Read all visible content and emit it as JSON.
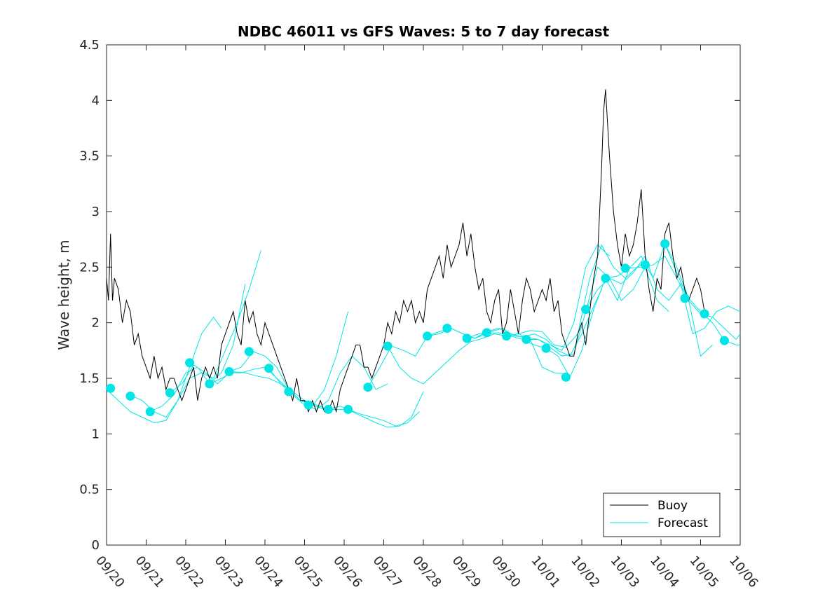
{
  "chart_data": {
    "type": "line",
    "title": "NDBC 46011 vs GFS Waves: 5 to 7 day forecast",
    "xlabel": "",
    "ylabel": "Wave height, m",
    "ylim": [
      0,
      4.5
    ],
    "yticks": [
      0,
      0.5,
      1,
      1.5,
      2,
      2.5,
      3,
      3.5,
      4,
      4.5
    ],
    "ytick_labels": [
      "0",
      "0.5",
      "1",
      "1.5",
      "2",
      "2.5",
      "3",
      "3.5",
      "4",
      "4.5"
    ],
    "xlim": [
      0,
      16
    ],
    "xticks": [
      0,
      1,
      2,
      3,
      4,
      5,
      6,
      7,
      8,
      9,
      10,
      11,
      12,
      13,
      14,
      15,
      16
    ],
    "xtick_labels": [
      "09/20",
      "09/21",
      "09/22",
      "09/23",
      "09/24",
      "09/25",
      "09/26",
      "09/27",
      "09/28",
      "09/29",
      "09/30",
      "10/01",
      "10/02",
      "10/03",
      "10/04",
      "10/05",
      "10/06"
    ],
    "legend": {
      "position": "bottom-right",
      "entries": [
        "Buoy",
        "Forecast"
      ]
    },
    "colors": {
      "buoy": "#000000",
      "forecast": "#00e5e5",
      "axis": "#262626"
    },
    "series": [
      {
        "name": "Buoy",
        "x": [
          0,
          0.05,
          0.1,
          0.15,
          0.2,
          0.3,
          0.4,
          0.5,
          0.6,
          0.7,
          0.8,
          0.9,
          1.0,
          1.1,
          1.2,
          1.3,
          1.4,
          1.5,
          1.6,
          1.7,
          1.8,
          1.9,
          2.0,
          2.1,
          2.2,
          2.3,
          2.4,
          2.5,
          2.6,
          2.7,
          2.8,
          2.9,
          3.0,
          3.1,
          3.2,
          3.3,
          3.4,
          3.5,
          3.6,
          3.7,
          3.8,
          3.9,
          4.0,
          4.1,
          4.2,
          4.3,
          4.4,
          4.5,
          4.6,
          4.7,
          4.8,
          4.9,
          5.0,
          5.1,
          5.2,
          5.3,
          5.4,
          5.5,
          5.6,
          5.7,
          5.8,
          5.9,
          6.0,
          6.1,
          6.2,
          6.3,
          6.4,
          6.5,
          6.6,
          6.7,
          6.8,
          6.9,
          7.0,
          7.1,
          7.2,
          7.3,
          7.4,
          7.5,
          7.6,
          7.7,
          7.8,
          7.9,
          8.0,
          8.1,
          8.2,
          8.3,
          8.4,
          8.5,
          8.6,
          8.7,
          8.8,
          8.9,
          9.0,
          9.1,
          9.2,
          9.3,
          9.4,
          9.5,
          9.6,
          9.7,
          9.8,
          9.9,
          10.0,
          10.1,
          10.2,
          10.3,
          10.4,
          10.5,
          10.6,
          10.7,
          10.8,
          10.9,
          11.0,
          11.1,
          11.2,
          11.3,
          11.4,
          11.5,
          11.6,
          11.7,
          11.8,
          11.9,
          12.0,
          12.1,
          12.2,
          12.3,
          12.4,
          12.5,
          12.55,
          12.6,
          12.7,
          12.8,
          12.9,
          13.0,
          13.1,
          13.2,
          13.3,
          13.4,
          13.5,
          13.6,
          13.7,
          13.8,
          13.9,
          14.0,
          14.1,
          14.2,
          14.3,
          14.4,
          14.5,
          14.6,
          14.7,
          14.8,
          14.9,
          15.0,
          15.1
        ],
        "values": [
          2.4,
          2.2,
          2.8,
          2.2,
          2.4,
          2.3,
          2.0,
          2.2,
          2.1,
          1.8,
          1.9,
          1.7,
          1.6,
          1.5,
          1.7,
          1.5,
          1.6,
          1.4,
          1.5,
          1.5,
          1.4,
          1.3,
          1.4,
          1.5,
          1.6,
          1.3,
          1.5,
          1.6,
          1.5,
          1.6,
          1.5,
          1.8,
          1.9,
          2.0,
          2.1,
          1.9,
          1.8,
          2.2,
          2.0,
          2.1,
          1.9,
          1.8,
          2.0,
          1.9,
          1.8,
          1.7,
          1.6,
          1.5,
          1.4,
          1.3,
          1.5,
          1.3,
          1.3,
          1.2,
          1.3,
          1.2,
          1.3,
          1.2,
          1.2,
          1.3,
          1.2,
          1.4,
          1.5,
          1.6,
          1.7,
          1.8,
          1.8,
          1.6,
          1.6,
          1.5,
          1.6,
          1.7,
          1.8,
          2.0,
          1.9,
          2.1,
          2.0,
          2.2,
          2.1,
          2.2,
          2.0,
          2.1,
          2.0,
          2.3,
          2.4,
          2.5,
          2.6,
          2.4,
          2.7,
          2.5,
          2.6,
          2.7,
          2.9,
          2.6,
          2.8,
          2.5,
          2.3,
          2.4,
          2.1,
          2.0,
          2.2,
          2.3,
          1.9,
          2.0,
          2.3,
          2.1,
          1.9,
          2.2,
          2.4,
          2.3,
          2.1,
          2.2,
          2.3,
          2.2,
          2.4,
          2.1,
          2.2,
          1.9,
          1.8,
          1.7,
          1.7,
          1.9,
          2.0,
          1.8,
          2.1,
          2.4,
          2.6,
          3.4,
          3.9,
          4.1,
          3.5,
          3.0,
          2.7,
          2.5,
          2.8,
          2.6,
          2.7,
          2.9,
          3.2,
          2.6,
          2.3,
          2.1,
          2.4,
          2.3,
          2.8,
          2.9,
          2.6,
          2.4,
          2.5,
          2.3,
          2.2,
          2.3,
          2.4,
          2.3,
          2.1
        ]
      },
      {
        "name": "Forecast",
        "runs": [
          {
            "x": [
              0,
              0.3,
              0.6,
              0.9,
              1.2,
              1.5,
              1.8,
              2.1,
              2.4,
              2.7,
              2.9
            ],
            "values": [
              1.4,
              1.3,
              1.2,
              1.15,
              1.1,
              1.12,
              1.3,
              1.6,
              1.9,
              2.05,
              1.95
            ]
          },
          {
            "x": [
              0.6,
              0.9,
              1.2,
              1.5,
              1.8,
              2.1,
              2.4,
              2.7,
              3.0,
              3.3,
              3.6,
              3.9
            ],
            "values": [
              1.35,
              1.3,
              1.2,
              1.15,
              1.3,
              1.5,
              1.55,
              1.5,
              1.75,
              2.0,
              2.3,
              2.65
            ]
          },
          {
            "x": [
              1.1,
              1.4,
              1.7,
              2.0,
              2.3,
              2.6,
              2.9,
              3.2,
              3.5
            ],
            "values": [
              1.2,
              1.25,
              1.35,
              1.55,
              1.6,
              1.45,
              1.55,
              1.8,
              2.35
            ]
          },
          {
            "x": [
              1.6,
              1.9,
              2.2,
              2.5,
              2.8,
              3.1,
              3.4,
              3.7,
              4.0,
              4.3,
              4.6,
              4.9,
              5.2,
              5.5,
              5.8,
              6.1
            ],
            "values": [
              1.37,
              1.45,
              1.62,
              1.55,
              1.45,
              1.55,
              1.55,
              1.58,
              1.6,
              1.5,
              1.4,
              1.3,
              1.25,
              1.4,
              1.7,
              2.1
            ]
          },
          {
            "x": [
              2.6,
              2.9,
              3.2,
              3.5,
              3.8,
              4.1,
              4.4,
              4.7,
              5.0,
              5.3,
              5.6,
              5.9,
              6.2,
              6.5,
              6.8,
              7.1
            ],
            "values": [
              1.45,
              1.5,
              1.56,
              1.55,
              1.52,
              1.5,
              1.45,
              1.35,
              1.26,
              1.22,
              1.3,
              1.55,
              1.7,
              1.6,
              1.4,
              1.45
            ]
          },
          {
            "x": [
              3.1,
              3.4,
              3.7,
              4.0,
              4.3,
              4.6,
              4.9,
              5.2,
              5.5,
              5.8,
              6.1,
              6.4,
              6.7,
              7.0,
              7.3,
              7.6,
              7.9
            ],
            "values": [
              1.56,
              1.6,
              1.74,
              1.7,
              1.6,
              1.4,
              1.3,
              1.26,
              1.22,
              1.22,
              1.22,
              1.18,
              1.15,
              1.12,
              1.07,
              1.1,
              1.2
            ]
          },
          {
            "x": [
              4.1,
              4.4,
              4.7,
              5.0,
              5.3,
              5.6,
              5.9,
              6.2,
              6.5,
              6.8,
              7.1,
              7.4,
              7.7,
              8.0
            ],
            "values": [
              1.59,
              1.45,
              1.38,
              1.3,
              1.26,
              1.22,
              1.25,
              1.2,
              1.15,
              1.1,
              1.06,
              1.07,
              1.15,
              1.38
            ]
          },
          {
            "x": [
              6.6,
              6.9,
              7.2,
              7.5,
              7.8,
              8.1,
              8.4,
              8.7,
              9.0,
              9.3,
              9.6,
              9.9,
              10.2,
              10.5,
              10.8,
              11.1
            ],
            "values": [
              1.42,
              1.6,
              1.79,
              1.75,
              1.7,
              1.88,
              1.9,
              1.95,
              1.9,
              1.86,
              1.9,
              1.91,
              1.88,
              1.85,
              1.8,
              1.77
            ]
          },
          {
            "x": [
              7.1,
              7.4,
              7.7,
              8.0,
              8.3,
              8.6,
              8.9,
              9.2,
              9.5,
              9.8,
              10.1,
              10.4,
              10.7,
              11.0,
              11.3,
              11.6
            ],
            "values": [
              1.79,
              1.6,
              1.5,
              1.45,
              1.55,
              1.65,
              1.75,
              1.83,
              1.86,
              1.9,
              1.88,
              1.9,
              1.85,
              1.6,
              1.55,
              1.54
            ]
          },
          {
            "x": [
              8.1,
              8.4,
              8.7,
              9.0,
              9.3,
              9.6,
              9.9,
              10.2,
              10.5,
              10.8,
              11.1,
              11.4,
              11.7,
              12.0,
              12.3,
              12.5
            ],
            "values": [
              1.88,
              1.92,
              1.95,
              1.9,
              1.86,
              1.92,
              1.95,
              1.9,
              1.87,
              1.9,
              1.85,
              1.75,
              1.7,
              1.9,
              2.15,
              2.3
            ]
          },
          {
            "x": [
              9.1,
              9.4,
              9.7,
              10.0,
              10.3,
              10.6,
              10.9,
              11.2,
              11.5,
              11.8,
              12.1,
              12.4,
              12.7
            ],
            "values": [
              1.86,
              1.9,
              1.92,
              1.95,
              1.88,
              1.87,
              1.85,
              1.8,
              1.75,
              2.0,
              2.5,
              2.7,
              2.6
            ]
          },
          {
            "x": [
              10.1,
              10.4,
              10.7,
              11.0,
              11.3,
              11.6,
              11.9,
              12.2,
              12.5,
              12.8,
              13.1,
              13.4,
              13.7
            ],
            "values": [
              1.88,
              1.9,
              1.93,
              1.92,
              1.8,
              1.78,
              1.9,
              2.4,
              2.7,
              2.5,
              2.4,
              2.5,
              2.55
            ]
          },
          {
            "x": [
              10.6,
              10.9,
              11.2,
              11.5,
              11.8,
              12.1,
              12.4,
              12.7,
              13.0,
              13.3,
              13.6,
              13.9,
              14.2
            ],
            "values": [
              1.85,
              1.85,
              1.78,
              1.7,
              1.72,
              2.1,
              2.5,
              2.4,
              2.2,
              2.3,
              2.5,
              2.2,
              2.1
            ]
          },
          {
            "x": [
              11.1,
              11.4,
              11.7,
              12.0,
              12.3,
              12.6,
              12.9,
              13.2,
              13.5,
              13.8,
              14.1,
              14.4,
              14.7,
              15.0,
              15.3,
              15.6,
              15.9,
              16.0
            ],
            "values": [
              1.77,
              1.7,
              1.51,
              1.75,
              2.12,
              2.4,
              2.42,
              2.49,
              2.5,
              2.52,
              2.6,
              2.4,
              2.2,
              2.08,
              2.05,
              1.95,
              1.85,
              1.9
            ]
          },
          {
            "x": [
              12.1,
              12.4,
              12.7,
              13.0,
              13.3,
              13.6,
              13.9,
              14.2,
              14.5,
              14.8,
              15.1,
              15.4,
              15.7,
              16.0
            ],
            "values": [
              2.12,
              2.3,
              2.4,
              2.35,
              2.45,
              2.6,
              2.3,
              2.2,
              2.35,
              1.9,
              1.95,
              2.1,
              2.15,
              2.1
            ]
          },
          {
            "x": [
              12.6,
              12.9,
              13.2,
              13.5,
              13.8,
              14.1,
              14.4,
              14.7,
              15.0,
              15.3,
              15.6,
              15.9,
              16.0
            ],
            "values": [
              2.4,
              2.2,
              2.49,
              2.6,
              2.4,
              2.71,
              2.5,
              2.22,
              2.1,
              2.0,
              1.84,
              1.8,
              1.8
            ]
          },
          {
            "x": [
              14.1,
              14.4,
              14.7,
              15.0,
              15.3
            ],
            "values": [
              2.71,
              2.45,
              2.2,
              1.7,
              1.8
            ]
          }
        ],
        "markers": {
          "x": [
            0.1,
            0.6,
            1.1,
            1.6,
            2.1,
            2.6,
            3.1,
            3.6,
            4.1,
            4.6,
            5.1,
            5.6,
            6.1,
            6.6,
            7.1,
            8.1,
            8.6,
            9.1,
            9.6,
            10.1,
            10.6,
            11.1,
            11.6,
            12.1,
            12.6,
            13.1,
            13.6,
            14.1,
            14.6,
            15.1,
            15.6
          ],
          "values": [
            1.41,
            1.34,
            1.2,
            1.37,
            1.64,
            1.45,
            1.56,
            1.74,
            1.59,
            1.38,
            1.26,
            1.22,
            1.22,
            1.42,
            1.79,
            1.88,
            1.95,
            1.86,
            1.91,
            1.88,
            1.85,
            1.77,
            1.51,
            2.12,
            2.4,
            2.49,
            2.52,
            2.71,
            2.22,
            2.08,
            1.84
          ]
        }
      }
    ]
  }
}
